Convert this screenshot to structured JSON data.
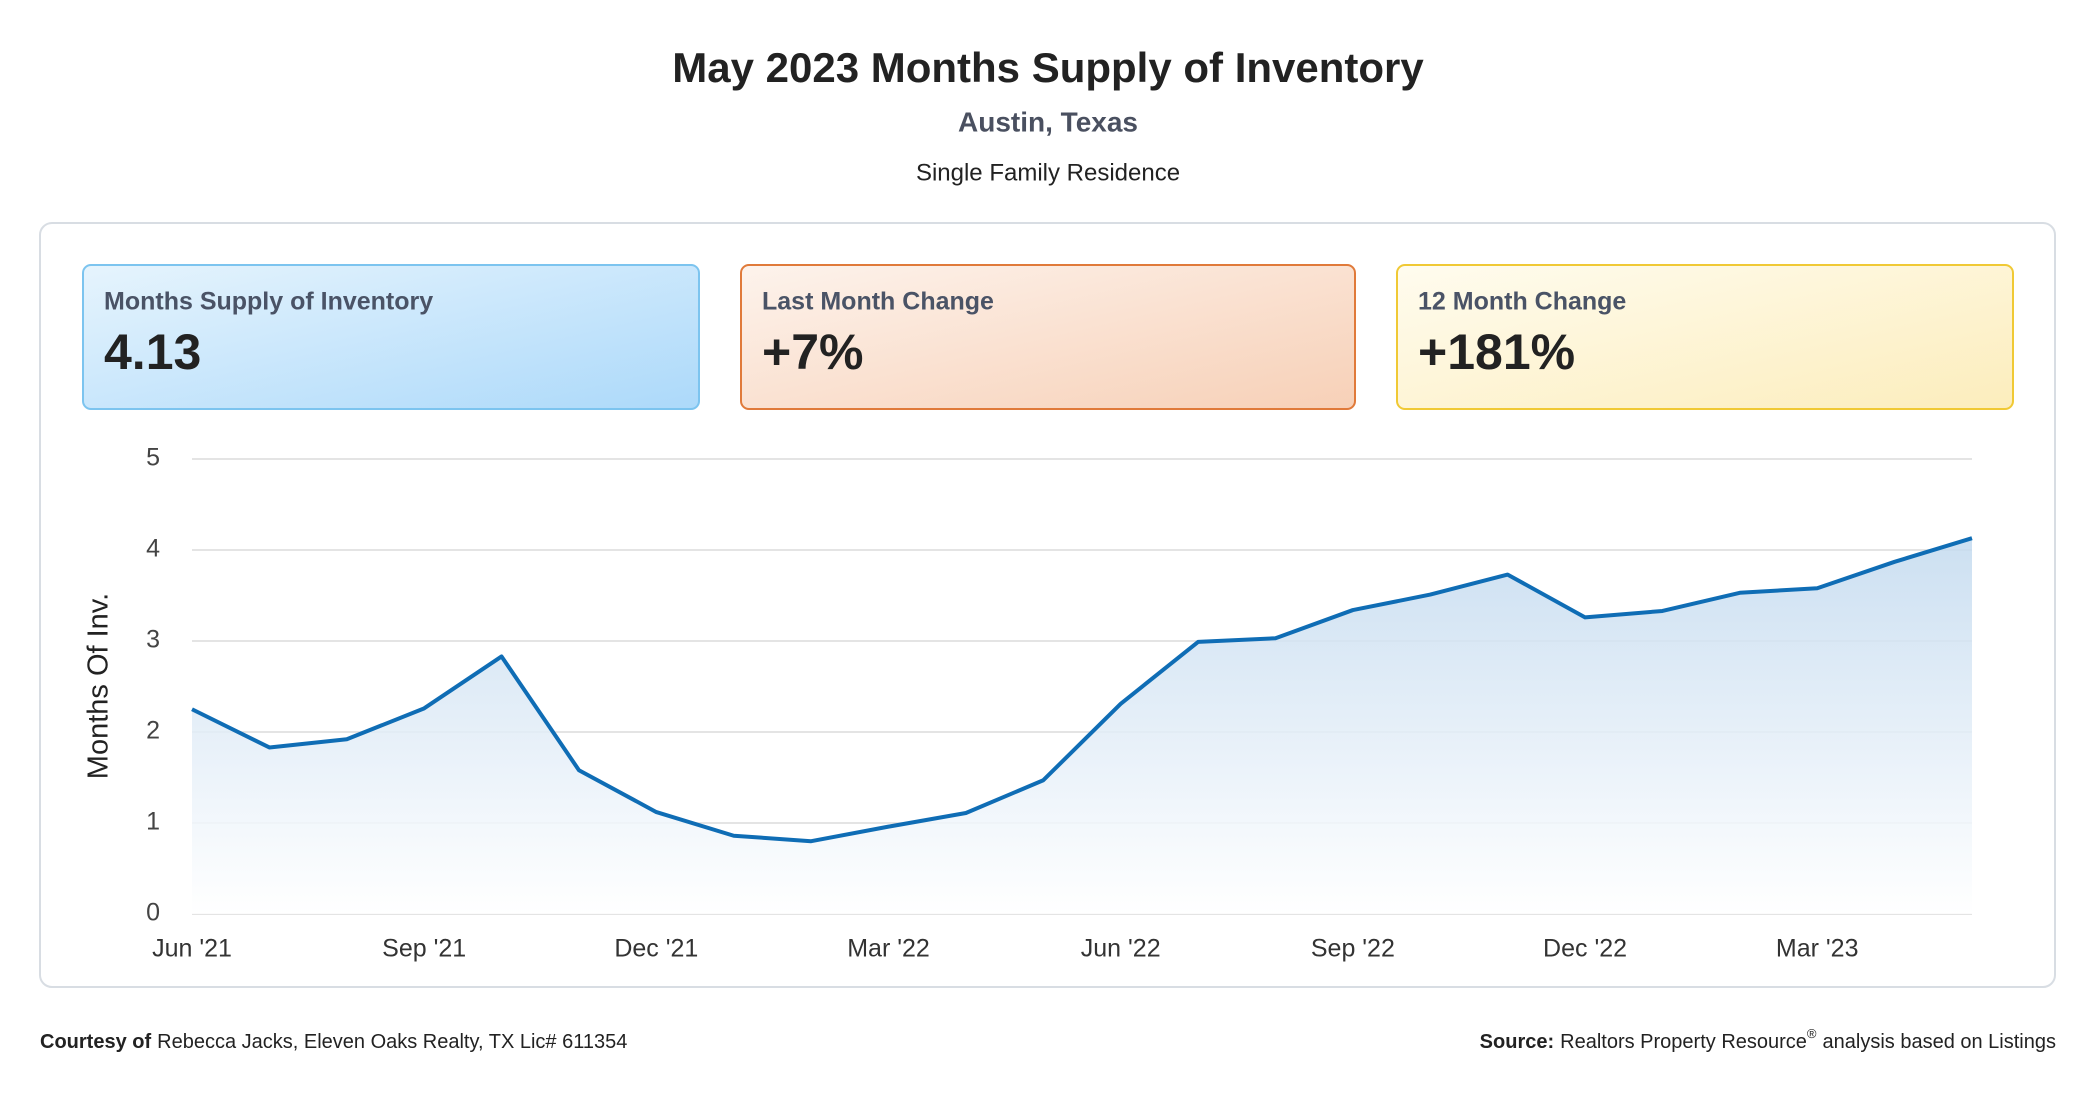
{
  "header": {
    "title": "May 2023 Months Supply of Inventory",
    "subtitle": "Austin, Texas",
    "description": "Single Family Residence"
  },
  "cards": [
    {
      "label": "Months Supply of Inventory",
      "value": "4.13"
    },
    {
      "label": "Last Month Change",
      "value": "+7%"
    },
    {
      "label": "12 Month Change",
      "value": "+181%"
    }
  ],
  "chart_data": {
    "type": "area",
    "ylabel": "Months Of Inv.",
    "color": "#0f6db5",
    "categories": [
      "Jun '21",
      null,
      null,
      "Sep '21",
      null,
      null,
      "Dec '21",
      null,
      null,
      "Mar '22",
      null,
      null,
      "Jun '22",
      null,
      null,
      "Sep '22",
      null,
      null,
      "Dec '22",
      null,
      null,
      "Mar '23",
      null,
      null
    ],
    "values": [
      2.25,
      1.83,
      1.92,
      2.26,
      2.83,
      1.58,
      1.12,
      0.86,
      0.8,
      0.96,
      1.11,
      1.47,
      2.31,
      2.99,
      3.03,
      3.34,
      3.51,
      3.73,
      3.26,
      3.33,
      3.53,
      3.58,
      3.87,
      4.13
    ],
    "ylim": [
      0,
      5
    ],
    "yticks": [
      0,
      1,
      2,
      3,
      4,
      5
    ],
    "grid": true
  },
  "footer": {
    "courtesy_label": "Courtesy of",
    "courtesy": "Rebecca Jacks, Eleven Oaks Realty, TX Lic# 611354",
    "source_label": "Source:",
    "source": "Realtors Property Resource",
    "source_mark": "®",
    "source_rest": "analysis based on Listings"
  }
}
